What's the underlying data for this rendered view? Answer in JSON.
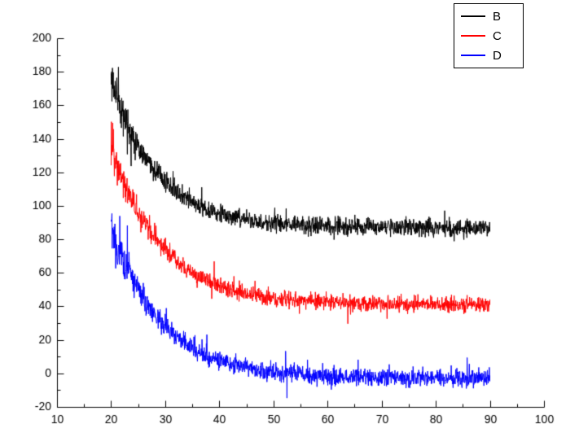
{
  "chart_data": {
    "type": "line",
    "title": "",
    "xlabel": "",
    "ylabel": "",
    "grid": false,
    "legend_position": "top-right-outside",
    "x_axis": {
      "min": 10,
      "max": 100,
      "ticks": [
        10,
        20,
        30,
        40,
        50,
        60,
        70,
        80,
        90,
        100
      ],
      "minor_step": 5
    },
    "y_axis": {
      "min": -20,
      "max": 200,
      "ticks": [
        -20,
        0,
        20,
        40,
        60,
        80,
        100,
        120,
        140,
        160,
        180,
        200
      ],
      "minor_step": 10
    },
    "series": [
      {
        "name": "B",
        "color": "#000000",
        "model": "noisy_exponential_decay",
        "x_start": 20,
        "x_end": 90,
        "start_value": 176,
        "plateau": 87,
        "decay_tau": 8.5,
        "noise_base": 4.5,
        "noise_peak_extra": 8,
        "noise_decay": 4,
        "seed": 11,
        "key_points": {
          "x": [
            20,
            25,
            30,
            35,
            40,
            45,
            50,
            60,
            70,
            80,
            90
          ],
          "y": [
            176,
            136,
            114,
            102,
            95,
            92,
            90,
            88,
            87,
            87,
            87
          ]
        }
      },
      {
        "name": "C",
        "color": "#ff0000",
        "model": "noisy_exponential_decay",
        "x_start": 20,
        "x_end": 90,
        "start_value": 135,
        "plateau": 41,
        "decay_tau": 9.5,
        "noise_base": 4,
        "noise_peak_extra": 8,
        "noise_decay": 4,
        "seed": 23,
        "key_points": {
          "x": [
            20,
            25,
            30,
            35,
            40,
            45,
            50,
            60,
            70,
            80,
            90
          ],
          "y": [
            135,
            97,
            76,
            60,
            50,
            45,
            43,
            41,
            41,
            41,
            41
          ]
        }
      },
      {
        "name": "D",
        "color": "#0000ff",
        "model": "noisy_exponential_decay",
        "x_start": 20,
        "x_end": 90,
        "start_value": 86,
        "plateau": -3,
        "decay_tau": 9.5,
        "noise_base": 4.5,
        "noise_peak_extra": 12,
        "noise_decay": 4,
        "seed": 37,
        "key_points": {
          "x": [
            20,
            25,
            30,
            35,
            40,
            45,
            50,
            60,
            70,
            80,
            90
          ],
          "y": [
            86,
            50,
            28,
            15,
            8,
            3,
            1,
            -2,
            -3,
            -3,
            -2
          ]
        }
      }
    ]
  }
}
